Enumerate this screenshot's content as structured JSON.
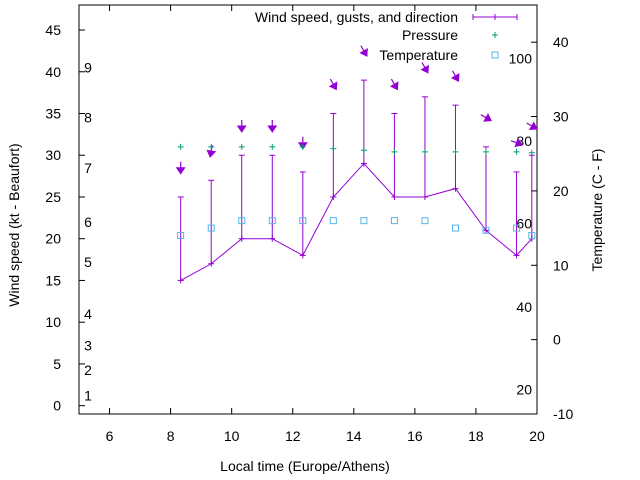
{
  "chart_data": {
    "type": "line",
    "title": "",
    "xlabel": "Local time (Europe/Athens)",
    "ylabel": "Wind speed (kt - Beaufort)",
    "y2label": "Temperature (C - F)",
    "xlim": [
      5,
      20
    ],
    "ylim": [
      -1,
      48
    ],
    "y2lim": [
      -10,
      45
    ],
    "x_ticks": [
      6,
      8,
      10,
      12,
      14,
      16,
      18,
      20
    ],
    "y_ticks": [
      0,
      5,
      10,
      15,
      20,
      25,
      30,
      35,
      40,
      45
    ],
    "y2_ticks": [
      -10,
      0,
      10,
      20,
      30,
      40
    ],
    "beaufort_labels": [
      {
        "label": "1",
        "kt": 1.2
      },
      {
        "label": "2",
        "kt": 4.3
      },
      {
        "label": "3",
        "kt": 7.2
      },
      {
        "label": "4",
        "kt": 11
      },
      {
        "label": "5",
        "kt": 17.2
      },
      {
        "label": "6",
        "kt": 22
      },
      {
        "label": "7",
        "kt": 28.5
      },
      {
        "label": "8",
        "kt": 34.5
      },
      {
        "label": "9",
        "kt": 40.5
      }
    ],
    "fahrenheit_labels": [
      {
        "label": "20",
        "c": -6.7
      },
      {
        "label": "40",
        "c": 4.4
      },
      {
        "label": "60",
        "c": 15.6
      },
      {
        "label": "80",
        "c": 26.7
      },
      {
        "label": "100",
        "c": 37.8
      }
    ],
    "series": [
      {
        "name": "Wind speed, gusts, and direction",
        "color": "#9400d3",
        "x": [
          8.33,
          9.33,
          10.33,
          11.33,
          12.33,
          13.33,
          14.33,
          15.33,
          16.33,
          17.33,
          18.33,
          19.33,
          19.83
        ],
        "speed": [
          15,
          17,
          20,
          20,
          18,
          25,
          29,
          25,
          25,
          26,
          21,
          18,
          20
        ],
        "gust": [
          25,
          27,
          30,
          30,
          28,
          35,
          39,
          35,
          37,
          36,
          31,
          28,
          30
        ],
        "arrow_kt": [
          28.5,
          30.5,
          33.5,
          33.5,
          31.5,
          38.5,
          42.5,
          38.5,
          40.5,
          39.5,
          34.5,
          31.5,
          33.5
        ],
        "direction_deg": [
          0,
          10,
          0,
          0,
          0,
          330,
          330,
          330,
          330,
          330,
          300,
          290,
          300
        ]
      },
      {
        "name": "Pressure",
        "color": "#009e73",
        "x": [
          8.33,
          9.33,
          10.33,
          11.33,
          12.33,
          13.33,
          14.33,
          15.33,
          16.33,
          17.33,
          18.33,
          19.33,
          19.83
        ],
        "values_kt": [
          31,
          31,
          31,
          31,
          31,
          30.8,
          30.6,
          30.4,
          30.4,
          30.4,
          30.4,
          30.4,
          30.3
        ]
      },
      {
        "name": "Temperature",
        "color": "#56b4e9",
        "x": [
          8.33,
          9.33,
          10.33,
          11.33,
          12.33,
          13.33,
          14.33,
          15.33,
          16.33,
          17.33,
          18.33,
          19.33,
          19.83
        ],
        "values": [
          14,
          15,
          16,
          16,
          16,
          16,
          16,
          16,
          16,
          15,
          14.7,
          15,
          14
        ]
      }
    ]
  }
}
